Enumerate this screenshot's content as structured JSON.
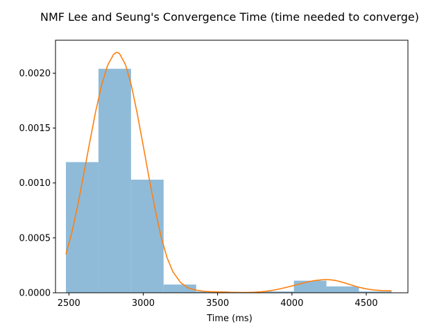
{
  "chart_data": {
    "type": "bar",
    "title": "NMF Lee and Seung's Convergence Time (time needed to converge)",
    "xlabel": "Time (ms)",
    "ylabel": "",
    "xlim": [
      2410,
      4780
    ],
    "ylim": [
      0,
      0.0023
    ],
    "grid": false,
    "legend": "none",
    "x_ticks": [
      {
        "value": 2500,
        "label": "2500"
      },
      {
        "value": 3000,
        "label": "3000"
      },
      {
        "value": 3500,
        "label": "3500"
      },
      {
        "value": 4000,
        "label": "4000"
      },
      {
        "value": 4500,
        "label": "4500"
      }
    ],
    "y_ticks": [
      {
        "value": 0,
        "label": "0.0000"
      },
      {
        "value": 0.0005,
        "label": "0.0005"
      },
      {
        "value": 0.001,
        "label": "0.0010"
      },
      {
        "value": 0.0015,
        "label": "0.0015"
      },
      {
        "value": 0.002,
        "label": "0.0020"
      }
    ],
    "histogram": {
      "color": "#8fbbd9",
      "bin_edges": [
        2480,
        2699,
        2918,
        3137,
        3356,
        3575,
        3794,
        4013,
        4232,
        4451,
        4670
      ],
      "values": [
        0.00119,
        0.00204,
        0.00103,
        7.5e-05,
        1.2e-05,
        0.0,
        1.2e-05,
        0.00011,
        5.8e-05,
        1.2e-05
      ]
    },
    "series": [
      {
        "type": "line",
        "color": "#ff7f0e",
        "x": [
          2480,
          2520,
          2560,
          2600,
          2640,
          2680,
          2720,
          2760,
          2800,
          2820,
          2840,
          2880,
          2920,
          2960,
          3000,
          3040,
          3080,
          3120,
          3160,
          3200,
          3250,
          3300,
          3350,
          3400,
          3450,
          3500,
          3550,
          3600,
          3650,
          3700,
          3750,
          3800,
          3850,
          3900,
          3950,
          4000,
          4050,
          4100,
          4150,
          4200,
          4230,
          4260,
          4300,
          4350,
          4400,
          4450,
          4500,
          4550,
          4600,
          4670
        ],
        "y": [
          0.00035,
          0.00055,
          0.0008,
          0.00108,
          0.00137,
          0.00165,
          0.00189,
          0.00207,
          0.00217,
          0.00219,
          0.00218,
          0.00208,
          0.00189,
          0.00163,
          0.00134,
          0.00104,
          0.00076,
          0.00051,
          0.00032,
          0.00019,
          9.5e-05,
          4.5e-05,
          2.5e-05,
          1.5e-05,
          1e-05,
          8e-06,
          6e-06,
          4e-06,
          3e-06,
          3e-06,
          5e-06,
          1e-05,
          1.8e-05,
          3e-05,
          4.5e-05,
          6.2e-05,
          8e-05,
          9.7e-05,
          0.00011,
          0.000118,
          0.00012,
          0.000118,
          0.00011,
          9.2e-05,
          7e-05,
          5e-05,
          3.5e-05,
          2.5e-05,
          2e-05,
          1.8e-05
        ]
      }
    ]
  }
}
